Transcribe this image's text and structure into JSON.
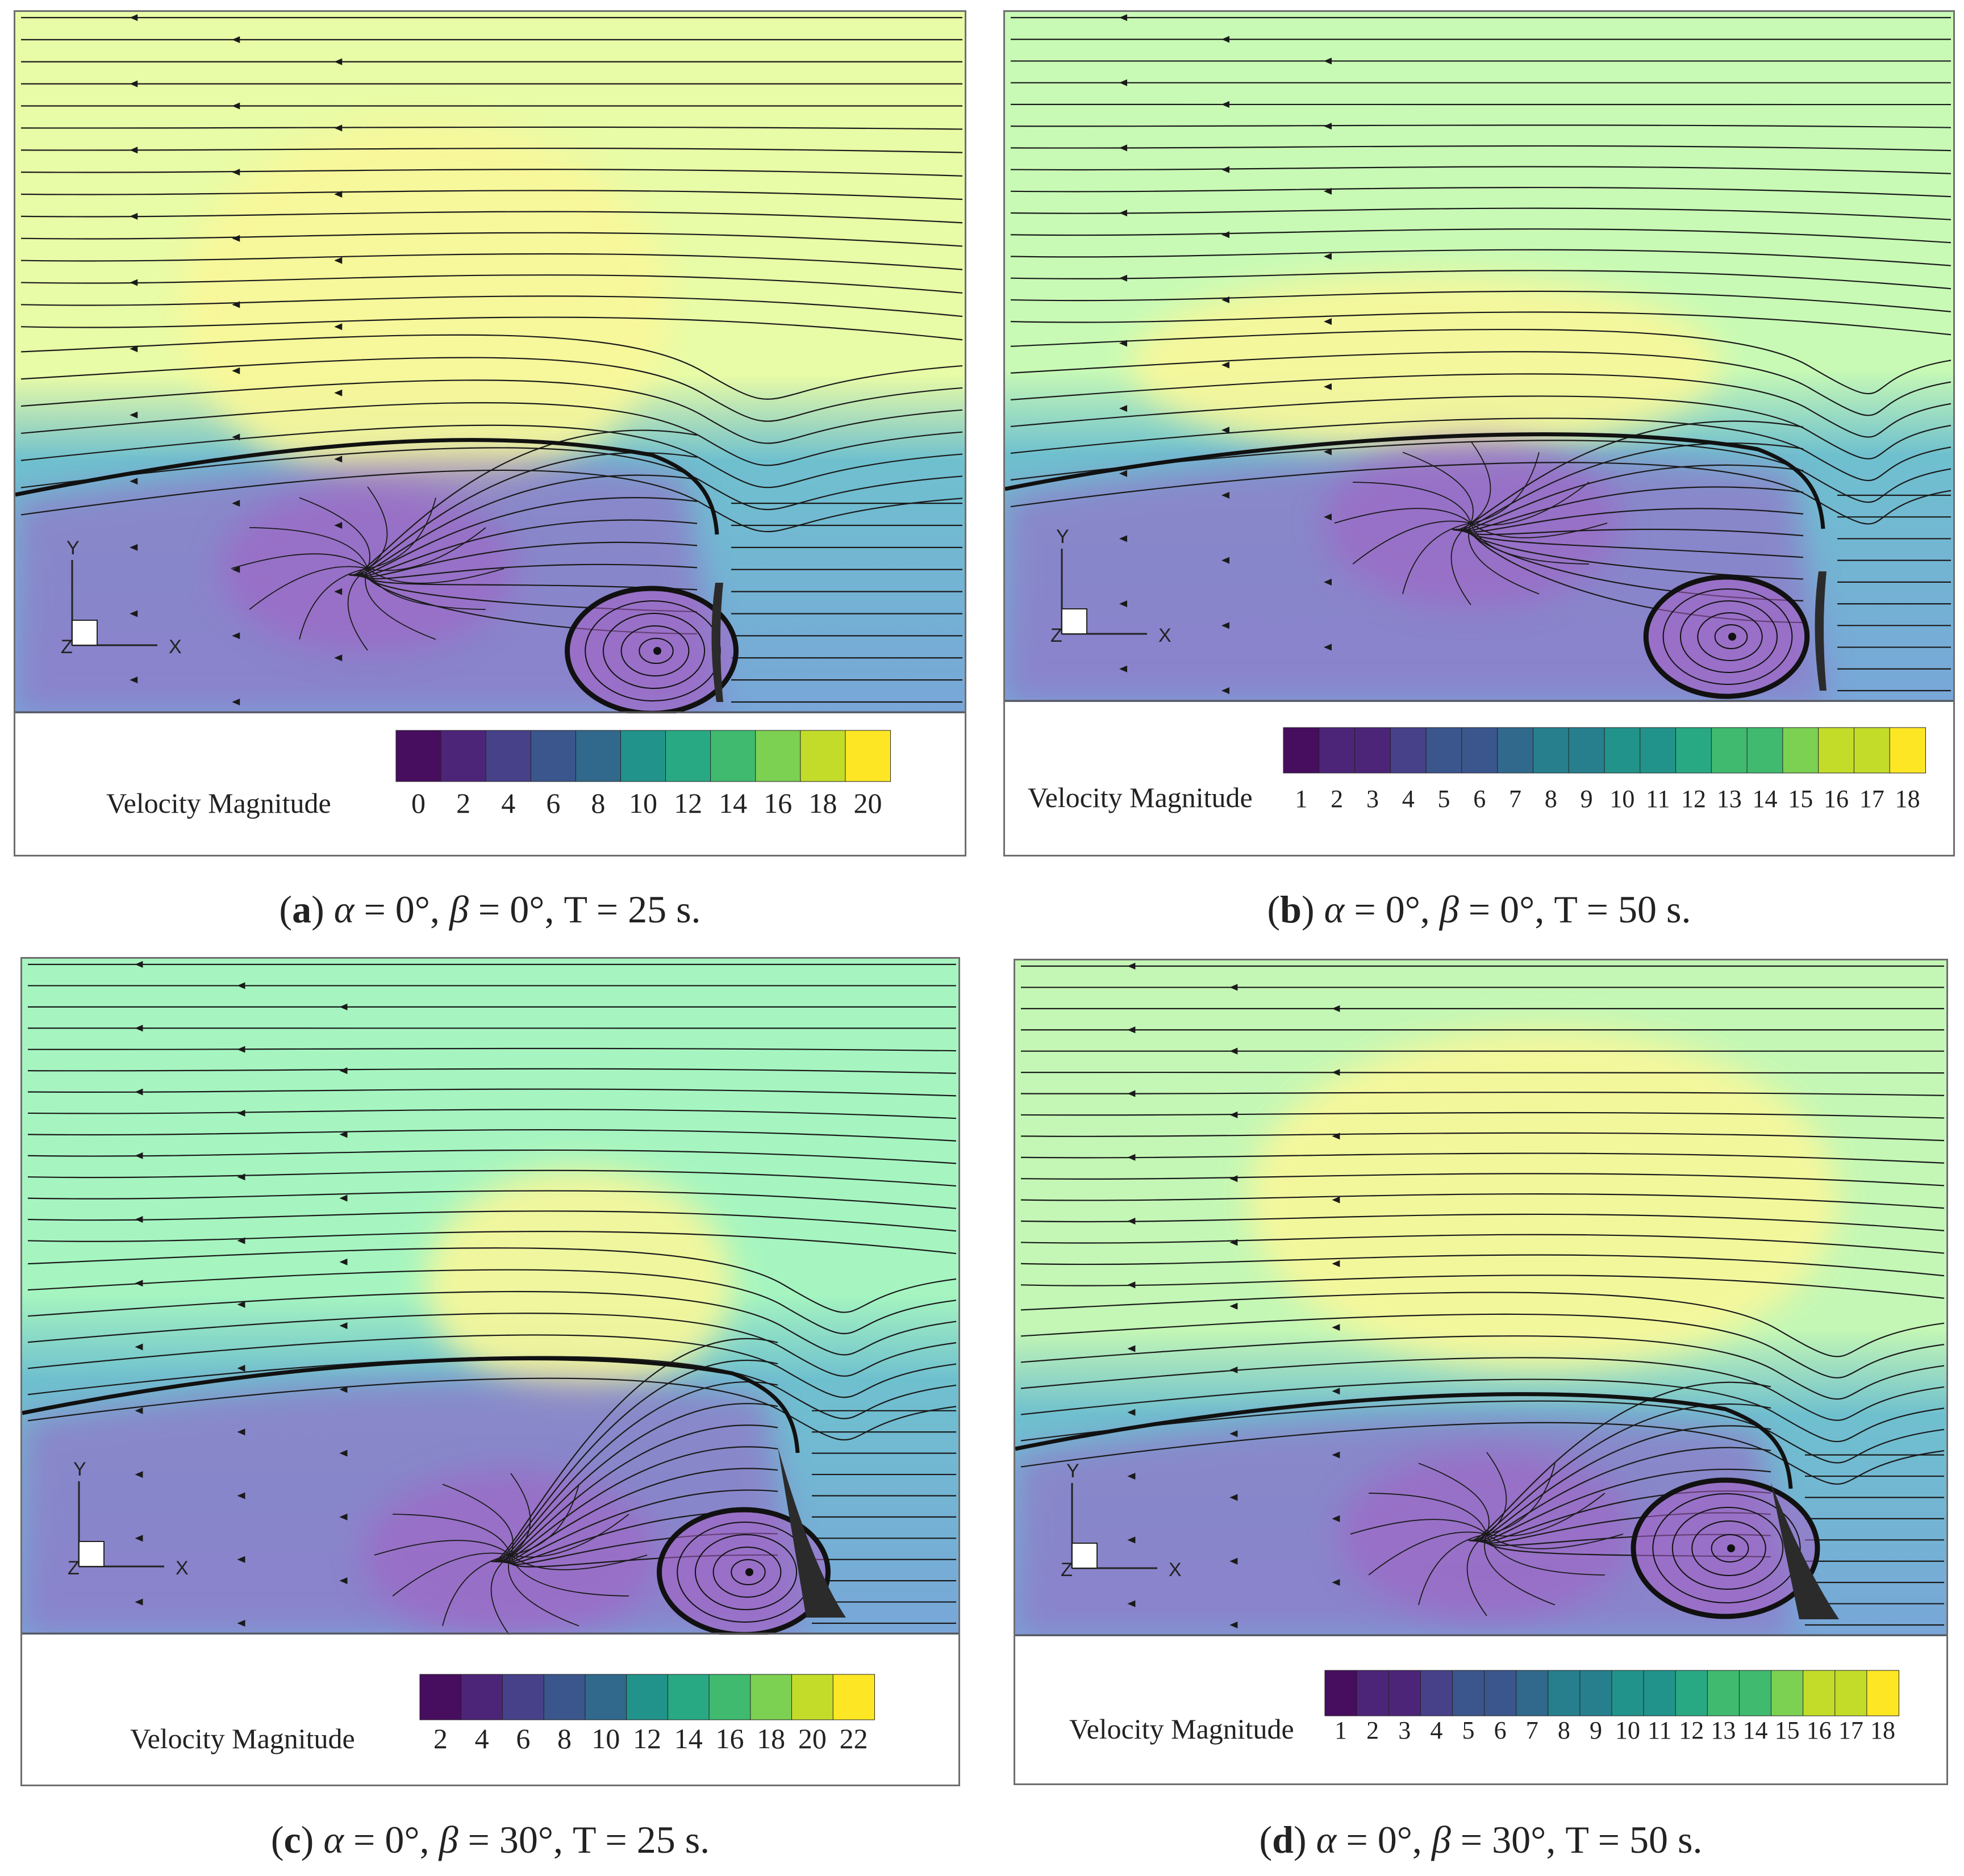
{
  "legend_title": "Velocity Magnitude",
  "axis_labels": {
    "x": "X",
    "y": "Y",
    "z": "Z"
  },
  "colormap": [
    "#470d5e",
    "#4d2578",
    "#47418a",
    "#3b568c",
    "#31698c",
    "#277f8d",
    "#22938a",
    "#28a983",
    "#40ba6f",
    "#7cd052",
    "#c3dc2a",
    "#fde725"
  ],
  "field_colors": {
    "low": "#9077c8",
    "mid": "#6fc0cf",
    "high": "#a6f5b9",
    "peak": "#f9f79a",
    "vortex": "#a55fc5"
  },
  "panels": [
    {
      "id": "a",
      "caption": {
        "letter": "a",
        "alpha_sym": "α",
        "alpha": "0°",
        "beta_sym": "β",
        "beta": "0°",
        "time": "T = 25 s."
      },
      "ticks": [
        "0",
        "2",
        "4",
        "6",
        "8",
        "10",
        "12",
        "14",
        "16",
        "18",
        "20"
      ],
      "legend_range": [
        0,
        20
      ],
      "bands": 11
    },
    {
      "id": "b",
      "caption": {
        "letter": "b",
        "alpha_sym": "α",
        "alpha": "0°",
        "beta_sym": "β",
        "beta": "0°",
        "time": "T = 50 s."
      },
      "ticks": [
        "1",
        "2",
        "3",
        "4",
        "5",
        "6",
        "7",
        "8",
        "9",
        "10",
        "11",
        "12",
        "13",
        "14",
        "15",
        "16",
        "17",
        "18"
      ],
      "legend_range": [
        1,
        18
      ],
      "bands": 18
    },
    {
      "id": "c",
      "caption": {
        "letter": "c",
        "alpha_sym": "α",
        "alpha": "0°",
        "beta_sym": "β",
        "beta": "30°",
        "time": "T = 25 s."
      },
      "ticks": [
        "2",
        "4",
        "6",
        "8",
        "10",
        "12",
        "14",
        "16",
        "18",
        "20",
        "22"
      ],
      "legend_range": [
        2,
        22
      ],
      "bands": 11
    },
    {
      "id": "d",
      "caption": {
        "letter": "d",
        "alpha_sym": "α",
        "alpha": "0°",
        "beta_sym": "β",
        "beta": "30°",
        "time": "T = 50 s."
      },
      "ticks": [
        "1",
        "2",
        "3",
        "4",
        "5",
        "6",
        "7",
        "8",
        "9",
        "10",
        "11",
        "12",
        "13",
        "14",
        "15",
        "16",
        "17",
        "18"
      ],
      "legend_range": [
        1,
        18
      ],
      "bands": 18
    }
  ]
}
